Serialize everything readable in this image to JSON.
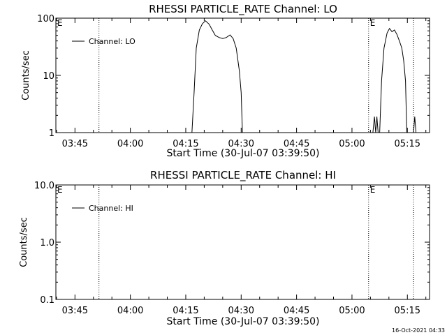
{
  "footer": {
    "date": "16-Oct-2021 04:33"
  },
  "chart_data": [
    {
      "type": "line",
      "title": "RHESSI PARTICLE_RATE Channel: LO",
      "xlabel": "Start Time (30-Jul-07 03:39:50)",
      "ylabel": "Counts/sec",
      "yscale": "log",
      "ylim": [
        1,
        100
      ],
      "ytick_values": [
        1,
        10,
        100
      ],
      "ytick_labels": [
        "1",
        "10",
        "100"
      ],
      "xlim": [
        "03:39:50",
        "05:21:00"
      ],
      "xtick_labels": [
        "03:45",
        "04:00",
        "04:15",
        "04:30",
        "04:45",
        "05:00",
        "05:15"
      ],
      "vlines": [
        {
          "x": "03:51:30",
          "label": ""
        },
        {
          "x": "05:04:30",
          "label": "E"
        },
        {
          "x": "05:16:40",
          "label": ""
        }
      ],
      "corner_label": "E",
      "legend": {
        "position": "top-left",
        "entries": [
          "Channel: LO"
        ]
      },
      "grid": false,
      "series": [
        {
          "name": "Channel: LO",
          "segments": [
            [
              {
                "x": "04:16:40",
                "y": 1
              },
              {
                "x": "04:17:15",
                "y": 5
              },
              {
                "x": "04:17:50",
                "y": 30
              },
              {
                "x": "04:18:40",
                "y": 62
              },
              {
                "x": "04:19:30",
                "y": 80
              },
              {
                "x": "04:20:20",
                "y": 90
              },
              {
                "x": "04:21:20",
                "y": 78
              },
              {
                "x": "04:22:10",
                "y": 62
              },
              {
                "x": "04:23:00",
                "y": 50
              },
              {
                "x": "04:24:00",
                "y": 46
              },
              {
                "x": "04:25:00",
                "y": 44
              },
              {
                "x": "04:26:00",
                "y": 46
              },
              {
                "x": "04:27:00",
                "y": 51
              },
              {
                "x": "04:27:50",
                "y": 44
              },
              {
                "x": "04:28:40",
                "y": 30
              },
              {
                "x": "04:29:30",
                "y": 12
              },
              {
                "x": "04:30:00",
                "y": 5
              },
              {
                "x": "04:30:20",
                "y": 1
              }
            ],
            [
              {
                "x": "05:05:40",
                "y": 1
              },
              {
                "x": "05:06:05",
                "y": 1.9
              },
              {
                "x": "05:06:25",
                "y": 1
              },
              {
                "x": "05:06:45",
                "y": 1.9
              },
              {
                "x": "05:07:05",
                "y": 1
              }
            ],
            [
              {
                "x": "05:07:30",
                "y": 1
              },
              {
                "x": "05:08:00",
                "y": 8
              },
              {
                "x": "05:08:40",
                "y": 30
              },
              {
                "x": "05:09:30",
                "y": 55
              },
              {
                "x": "05:10:10",
                "y": 66
              },
              {
                "x": "05:10:50",
                "y": 58
              },
              {
                "x": "05:11:30",
                "y": 62
              },
              {
                "x": "05:12:10",
                "y": 52
              },
              {
                "x": "05:12:50",
                "y": 40
              },
              {
                "x": "05:13:30",
                "y": 30
              },
              {
                "x": "05:14:00",
                "y": 18
              },
              {
                "x": "05:14:30",
                "y": 8
              },
              {
                "x": "05:14:50",
                "y": 1
              }
            ],
            [
              {
                "x": "05:16:40",
                "y": 1
              },
              {
                "x": "05:17:00",
                "y": 1.9
              },
              {
                "x": "05:17:20",
                "y": 1
              }
            ]
          ]
        }
      ]
    },
    {
      "type": "line",
      "title": "RHESSI PARTICLE_RATE Channel: HI",
      "xlabel": "Start Time (30-Jul-07 03:39:50)",
      "ylabel": "Counts/sec",
      "yscale": "log",
      "ylim": [
        0.1,
        10
      ],
      "ytick_values": [
        0.1,
        1,
        10
      ],
      "ytick_labels": [
        "0.1",
        "1.0",
        "10.0"
      ],
      "xlim": [
        "03:39:50",
        "05:21:00"
      ],
      "xtick_labels": [
        "03:45",
        "04:00",
        "04:15",
        "04:30",
        "04:45",
        "05:00",
        "05:15"
      ],
      "vlines": [
        {
          "x": "03:51:30",
          "label": ""
        },
        {
          "x": "05:04:30",
          "label": "E"
        },
        {
          "x": "05:16:40",
          "label": ""
        }
      ],
      "corner_label": "E",
      "legend": {
        "position": "top-left",
        "entries": [
          "Channel: HI"
        ]
      },
      "grid": false,
      "series": [
        {
          "name": "Channel: HI",
          "segments": []
        }
      ]
    }
  ]
}
